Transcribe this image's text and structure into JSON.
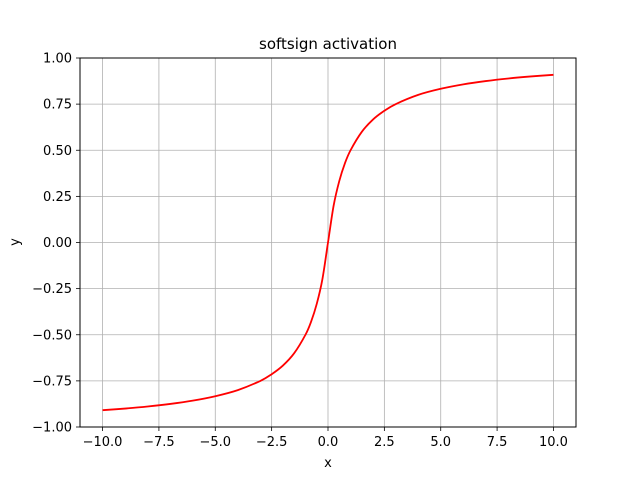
{
  "chart_data": {
    "type": "line",
    "title": "softsign activation",
    "xlabel": "x",
    "ylabel": "y",
    "xlim": [
      -11,
      11
    ],
    "ylim": [
      -1.0,
      1.0
    ],
    "grid": true,
    "xticks": [
      -10.0,
      -7.5,
      -5.0,
      -2.5,
      0.0,
      2.5,
      5.0,
      7.5,
      10.0
    ],
    "xtick_labels": [
      "−10.0",
      "−7.5",
      "−5.0",
      "−2.5",
      "0.0",
      "2.5",
      "5.0",
      "7.5",
      "10.0"
    ],
    "yticks": [
      -1.0,
      -0.75,
      -0.5,
      -0.25,
      0.0,
      0.25,
      0.5,
      0.75,
      1.0
    ],
    "ytick_labels": [
      "−1.00",
      "−0.75",
      "−0.50",
      "−0.25",
      "0.00",
      "0.25",
      "0.50",
      "0.75",
      "1.00"
    ],
    "series": [
      {
        "color": "#ff0000",
        "x": [
          -10,
          -9,
          -8,
          -7,
          -6,
          -5,
          -4,
          -3,
          -2.5,
          -2,
          -1.5,
          -1,
          -0.75,
          -0.5,
          -0.25,
          0,
          0.25,
          0.5,
          0.75,
          1,
          1.5,
          2,
          2.5,
          3,
          4,
          5,
          6,
          7,
          8,
          9,
          10
        ],
        "y": [
          -0.909,
          -0.9,
          -0.889,
          -0.875,
          -0.857,
          -0.833,
          -0.8,
          -0.75,
          -0.714,
          -0.667,
          -0.6,
          -0.5,
          -0.429,
          -0.333,
          -0.2,
          0,
          0.2,
          0.333,
          0.429,
          0.5,
          0.6,
          0.667,
          0.714,
          0.75,
          0.8,
          0.833,
          0.857,
          0.875,
          0.889,
          0.9,
          0.909
        ]
      }
    ]
  }
}
